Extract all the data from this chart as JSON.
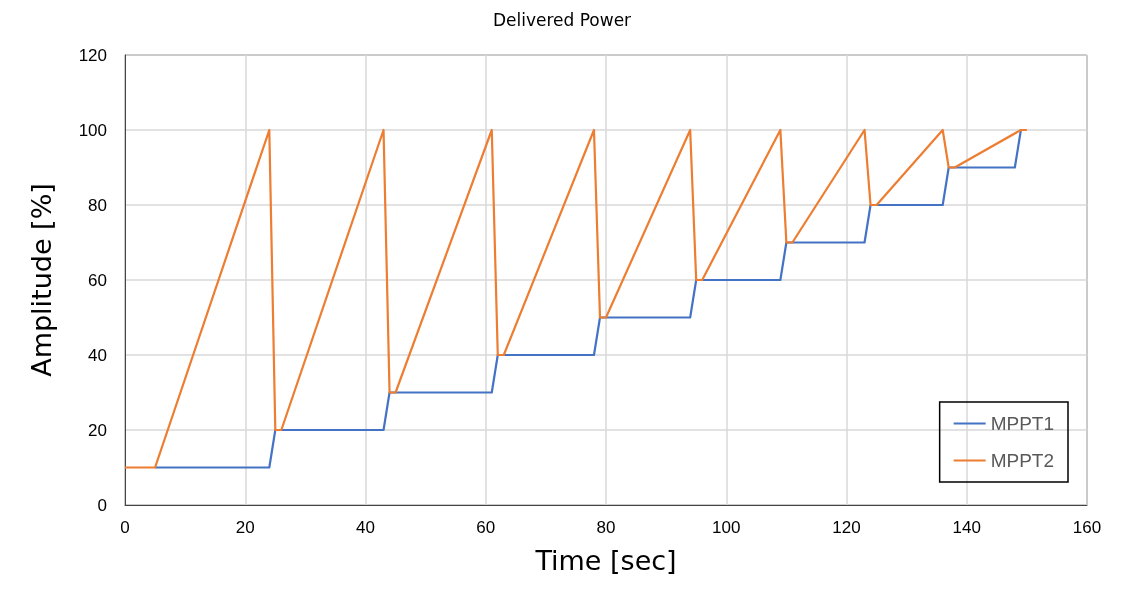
{
  "chart_data": {
    "type": "line",
    "title": "Delivered Power",
    "xlabel": "Time [sec]",
    "ylabel": "Amplitude [%]",
    "xlim": [
      0,
      160
    ],
    "xticks": [
      0,
      20,
      40,
      60,
      80,
      100,
      120,
      140,
      160
    ],
    "ylim": [
      0,
      120
    ],
    "yticks": [
      0,
      20,
      40,
      60,
      80,
      100,
      120
    ],
    "grid": true,
    "legend": "bottom right",
    "marker": "none",
    "line_style": "solid",
    "series": [
      {
        "name": "MPPT1",
        "color": "#4472c4",
        "x": [
          5,
          24,
          25,
          43,
          44,
          61,
          62,
          78,
          79,
          94,
          95,
          109,
          110,
          123,
          124,
          136,
          137,
          148,
          149
        ],
        "values": [
          10,
          10,
          20,
          20,
          30,
          30,
          40,
          40,
          50,
          50,
          60,
          60,
          70,
          70,
          80,
          80,
          90,
          90,
          100
        ]
      },
      {
        "name": "MPPT2",
        "color": "#ed7d31",
        "x": [
          0,
          5,
          24,
          25,
          26,
          43,
          44,
          45,
          61,
          62,
          63,
          78,
          79,
          80,
          94,
          95,
          96,
          109,
          110,
          111,
          123,
          124,
          125,
          136,
          137,
          138,
          149,
          150
        ],
        "values": [
          10,
          10,
          100,
          20,
          20,
          100,
          30,
          30,
          100,
          40,
          40,
          100,
          50,
          50,
          100,
          60,
          60,
          100,
          70,
          70,
          100,
          80,
          80,
          100,
          90,
          90,
          100,
          100
        ]
      }
    ]
  }
}
